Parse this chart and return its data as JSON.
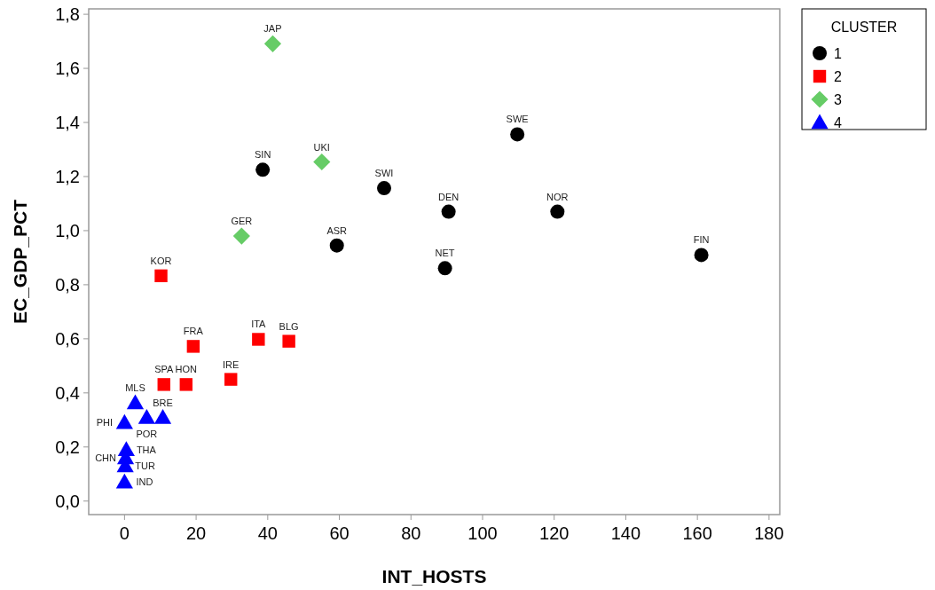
{
  "chart_data": {
    "type": "scatter",
    "xlabel": "INT_HOSTS",
    "ylabel": "EC_GDP_PCT",
    "legend_title": "CLUSTER",
    "legend": "right",
    "xlim": [
      -10,
      183
    ],
    "ylim": [
      -0.05,
      1.82
    ],
    "xticks": [
      0,
      20,
      40,
      60,
      80,
      100,
      120,
      140,
      160,
      180
    ],
    "yticks": [
      {
        "value": 0,
        "label": "0,0"
      },
      {
        "value": 0.2,
        "label": "0,2"
      },
      {
        "value": 0.4,
        "label": "0,4"
      },
      {
        "value": 0.6,
        "label": "0,6"
      },
      {
        "value": 0.8,
        "label": "0,8"
      },
      {
        "value": 1.0,
        "label": "1,0"
      },
      {
        "value": 1.2,
        "label": "1,2"
      },
      {
        "value": 1.4,
        "label": "1,4"
      },
      {
        "value": 1.6,
        "label": "1,6"
      },
      {
        "value": 1.8,
        "label": "1,8"
      }
    ],
    "series": [
      {
        "name": "1",
        "color": "#000000",
        "marker": "circle",
        "x": [
          38.6,
          59.3,
          72.5,
          90.5,
          89.5,
          109.7,
          120.9,
          161.1
        ],
        "values": [
          1.225,
          0.945,
          1.157,
          1.07,
          0.861,
          1.356,
          1.07,
          0.91
        ]
      },
      {
        "name": "2",
        "color": "#ff0000",
        "marker": "square",
        "x": [
          10.2,
          19.2,
          37.4,
          45.9,
          11.0,
          17.2,
          29.7
        ],
        "values": [
          0.833,
          0.572,
          0.598,
          0.591,
          0.431,
          0.431,
          0.45
        ]
      },
      {
        "name": "3",
        "color": "#66cc66",
        "marker": "diamond",
        "x": [
          41.4,
          55.1,
          32.7
        ],
        "values": [
          1.691,
          1.254,
          0.98
        ]
      },
      {
        "name": "4",
        "color": "#0000ff",
        "marker": "triangle",
        "x": [
          3,
          6.2,
          10.7,
          0,
          0.5,
          0.3,
          0.2,
          0
        ],
        "values": [
          0.363,
          0.309,
          0.309,
          0.29,
          0.19,
          0.16,
          0.13,
          0.07
        ]
      }
    ],
    "annotations": [
      {
        "text": "SIN",
        "x": 38.6,
        "y": 1.225
      },
      {
        "text": "ASR",
        "x": 59.3,
        "y": 0.945
      },
      {
        "text": "SWI",
        "x": 72.5,
        "y": 1.157
      },
      {
        "text": "DEN",
        "x": 90.5,
        "y": 1.07
      },
      {
        "text": "NET",
        "x": 89.5,
        "y": 0.861
      },
      {
        "text": "SWE",
        "x": 109.7,
        "y": 1.356
      },
      {
        "text": "NOR",
        "x": 120.9,
        "y": 1.07
      },
      {
        "text": "FIN",
        "x": 161.1,
        "y": 0.91
      },
      {
        "text": "KOR",
        "x": 10.2,
        "y": 0.833
      },
      {
        "text": "FRA",
        "x": 19.2,
        "y": 0.572
      },
      {
        "text": "ITA",
        "x": 37.4,
        "y": 0.598
      },
      {
        "text": "BLG",
        "x": 45.9,
        "y": 0.591
      },
      {
        "text": "SPA",
        "x": 11.0,
        "y": 0.431
      },
      {
        "text": "HON",
        "x": 17.2,
        "y": 0.431
      },
      {
        "text": "IRE",
        "x": 29.7,
        "y": 0.45
      },
      {
        "text": "JAP",
        "x": 41.4,
        "y": 1.691
      },
      {
        "text": "UKI",
        "x": 55.1,
        "y": 1.254
      },
      {
        "text": "GER",
        "x": 32.7,
        "y": 0.98
      },
      {
        "text": "MLS",
        "x": 3,
        "y": 0.363
      },
      {
        "text": "POR",
        "x": 6.2,
        "y": 0.309
      },
      {
        "text": "BRE",
        "x": 10.7,
        "y": 0.309
      },
      {
        "text": "PHI",
        "x": 0,
        "y": 0.29
      },
      {
        "text": "THA",
        "x": 0.5,
        "y": 0.19
      },
      {
        "text": "CHN",
        "x": 0.3,
        "y": 0.16
      },
      {
        "text": "TUR",
        "x": 0.2,
        "y": 0.13
      },
      {
        "text": "IND",
        "x": 0,
        "y": 0.07
      }
    ]
  }
}
